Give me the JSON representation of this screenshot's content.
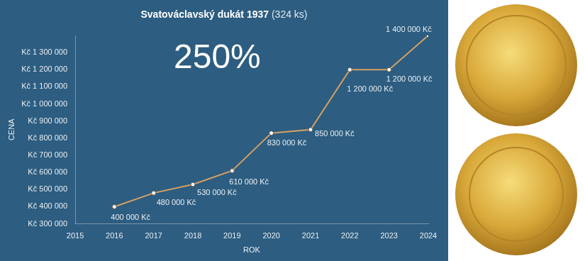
{
  "chart_data": {
    "type": "line",
    "title": "Svatováclavský dukát 1937 (324 ks)",
    "annotations": [
      "250%"
    ],
    "x_label": "ROK",
    "y_label": "CENA",
    "x": [
      2016,
      2017,
      2018,
      2019,
      2020,
      2021,
      2022,
      2023,
      2024
    ],
    "values": [
      400000,
      480000,
      530000,
      610000,
      830000,
      850000,
      1200000,
      1200000,
      1400000
    ],
    "value_labels": [
      "400 000 Kč",
      "480 000 Kč",
      "530 000 Kč",
      "610 000 Kč",
      "830 000 Kč",
      "850 000 Kč",
      "1 200 000 Kč",
      "1 200 000 Kč",
      "1 400 000 Kč"
    ],
    "color": "#d6a064",
    "marker": "circle",
    "xlim": [
      2015,
      2024
    ],
    "xticks": [
      2015,
      2016,
      2017,
      2018,
      2019,
      2020,
      2021,
      2022,
      2023,
      2024
    ],
    "ylim": [
      300000,
      1400000
    ],
    "yticks": [
      {
        "value": 300000,
        "label": "Kč 300 000"
      },
      {
        "value": 400000,
        "label": "Kč 400 000"
      },
      {
        "value": 500000,
        "label": "Kč 500 000"
      },
      {
        "value": 600000,
        "label": "Kč 600 000"
      },
      {
        "value": 700000,
        "label": "Kč 700 000"
      },
      {
        "value": 800000,
        "label": "Kč 800 000"
      },
      {
        "value": 900000,
        "label": "Kč 900 000"
      },
      {
        "value": 1000000,
        "label": "Kč 1 000 000"
      },
      {
        "value": 1100000,
        "label": "Kč 1 100 000"
      },
      {
        "value": 1200000,
        "label": "Kč 1 200 000"
      },
      {
        "value": 1300000,
        "label": "Kč 1 300 000"
      }
    ],
    "grid": false,
    "data_labels": true
  }
}
